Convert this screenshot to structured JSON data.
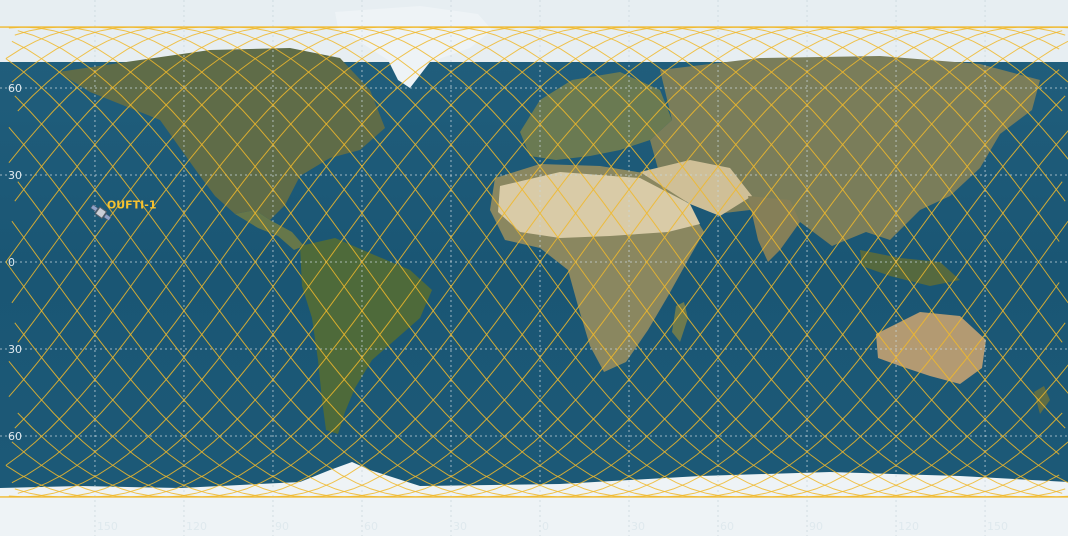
{
  "map": {
    "projection": "equirectangular",
    "lon_range": [
      -180,
      180
    ],
    "lat_range": [
      -90,
      90
    ],
    "grid": true,
    "lon_ticks": [
      {
        "value": -150,
        "label": "150"
      },
      {
        "value": -120,
        "label": "120"
      },
      {
        "value": -90,
        "label": "90"
      },
      {
        "value": -60,
        "label": "60"
      },
      {
        "value": -30,
        "label": "30"
      },
      {
        "value": 0,
        "label": "0"
      },
      {
        "value": 30,
        "label": "30"
      },
      {
        "value": 60,
        "label": "60"
      },
      {
        "value": 90,
        "label": "90"
      },
      {
        "value": 120,
        "label": "120"
      },
      {
        "value": 150,
        "label": "150"
      }
    ],
    "lat_ticks": [
      {
        "value": 60,
        "label": "60"
      },
      {
        "value": 30,
        "label": "30"
      },
      {
        "value": 0,
        "label": "0"
      },
      {
        "value": -30,
        "label": "30"
      },
      {
        "value": -60,
        "label": "60"
      }
    ],
    "colors": {
      "ocean": "#1d5a78",
      "land": "#6e7d55",
      "desert": "#d6c9a6",
      "ice": "#eef3f6",
      "grid": "#c9d6dc",
      "track": "#f0b92c"
    }
  },
  "satellite": {
    "name": "OUFTI-1",
    "lon": -148,
    "lat": 17,
    "icon": "satellite-icon",
    "label_color": "#f5c230"
  },
  "ground_track": {
    "inclination_deg": 81,
    "lon_step_deg": 24,
    "segments": 15
  }
}
